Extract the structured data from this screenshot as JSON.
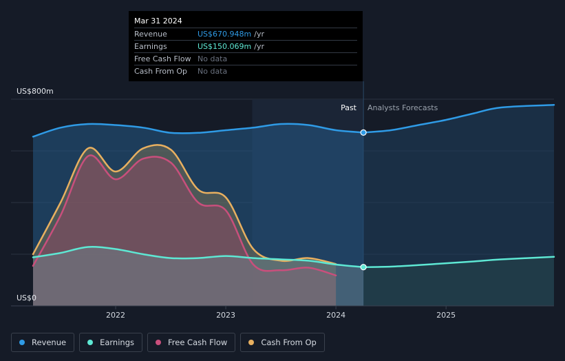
{
  "chart_data": {
    "type": "area",
    "y_axis": {
      "top_label": "US$800m",
      "bottom_label": "US$0",
      "ylim": [
        0,
        800
      ],
      "gridlines": [
        0,
        200,
        400,
        600,
        800
      ]
    },
    "x_axis": {
      "ticks": [
        "2022",
        "2023",
        "2024",
        "2025"
      ],
      "xlim": [
        2021.25,
        2025.98
      ]
    },
    "regions": {
      "past_label": "Past",
      "forecast_label": "Analysts Forecasts",
      "forecast_start": 2024.25,
      "highlight_start": 2023.24
    },
    "colors": {
      "revenue": "#2f9be6",
      "earnings": "#5ee8d4",
      "free_cash_flow": "#c94f7c",
      "cash_from_op": "#e8b060",
      "background": "#151b27"
    },
    "series": [
      {
        "key": "revenue",
        "name": "Revenue",
        "color": "#2f9be6",
        "points": [
          [
            2021.25,
            655
          ],
          [
            2021.5,
            690
          ],
          [
            2021.75,
            704
          ],
          [
            2022.0,
            700
          ],
          [
            2022.25,
            690
          ],
          [
            2022.5,
            670
          ],
          [
            2022.75,
            670
          ],
          [
            2023.0,
            680
          ],
          [
            2023.25,
            690
          ],
          [
            2023.5,
            704
          ],
          [
            2023.75,
            700
          ],
          [
            2024.0,
            680
          ],
          [
            2024.25,
            671
          ]
        ],
        "forecast": [
          [
            2024.25,
            671
          ],
          [
            2024.5,
            680
          ],
          [
            2024.75,
            700
          ],
          [
            2025.0,
            720
          ],
          [
            2025.25,
            745
          ],
          [
            2025.5,
            768
          ],
          [
            2025.98,
            778
          ]
        ]
      },
      {
        "key": "earnings",
        "name": "Earnings",
        "color": "#5ee8d4",
        "points": [
          [
            2021.25,
            188
          ],
          [
            2021.5,
            205
          ],
          [
            2021.75,
            228
          ],
          [
            2022.0,
            220
          ],
          [
            2022.25,
            200
          ],
          [
            2022.5,
            185
          ],
          [
            2022.75,
            185
          ],
          [
            2023.0,
            193
          ],
          [
            2023.25,
            185
          ],
          [
            2023.5,
            180
          ],
          [
            2023.75,
            175
          ],
          [
            2024.0,
            160
          ],
          [
            2024.25,
            150
          ]
        ],
        "forecast": [
          [
            2024.25,
            150
          ],
          [
            2024.5,
            152
          ],
          [
            2024.75,
            158
          ],
          [
            2025.0,
            165
          ],
          [
            2025.25,
            172
          ],
          [
            2025.5,
            180
          ],
          [
            2025.98,
            190
          ]
        ]
      },
      {
        "key": "free_cash_flow",
        "name": "Free Cash Flow",
        "color": "#c94f7c",
        "points": [
          [
            2021.25,
            155
          ],
          [
            2021.5,
            350
          ],
          [
            2021.75,
            580
          ],
          [
            2022.0,
            490
          ],
          [
            2022.25,
            570
          ],
          [
            2022.5,
            555
          ],
          [
            2022.75,
            400
          ],
          [
            2023.0,
            370
          ],
          [
            2023.25,
            160
          ],
          [
            2023.5,
            138
          ],
          [
            2023.75,
            148
          ],
          [
            2024.0,
            118
          ]
        ]
      },
      {
        "key": "cash_from_op",
        "name": "Cash From Op",
        "color": "#e8b060",
        "points": [
          [
            2021.25,
            200
          ],
          [
            2021.5,
            400
          ],
          [
            2021.75,
            610
          ],
          [
            2022.0,
            520
          ],
          [
            2022.25,
            610
          ],
          [
            2022.5,
            605
          ],
          [
            2022.75,
            450
          ],
          [
            2023.0,
            420
          ],
          [
            2023.25,
            220
          ],
          [
            2023.5,
            175
          ],
          [
            2023.75,
            185
          ],
          [
            2024.0,
            162
          ]
        ]
      }
    ]
  },
  "tooltip": {
    "date": "Mar 31 2024",
    "rows": [
      {
        "label": "Revenue",
        "value": "US$670.948m",
        "unit": "/yr",
        "kind": "revenue"
      },
      {
        "label": "Earnings",
        "value": "US$150.069m",
        "unit": "/yr",
        "kind": "earnings"
      },
      {
        "label": "Free Cash Flow",
        "value": "No data",
        "unit": "",
        "kind": "nodata"
      },
      {
        "label": "Cash From Op",
        "value": "No data",
        "unit": "",
        "kind": "nodata"
      }
    ]
  },
  "legend": [
    {
      "label": "Revenue",
      "color": "#2f9be6"
    },
    {
      "label": "Earnings",
      "color": "#5ee8d4"
    },
    {
      "label": "Free Cash Flow",
      "color": "#c94f7c"
    },
    {
      "label": "Cash From Op",
      "color": "#e8b060"
    }
  ]
}
